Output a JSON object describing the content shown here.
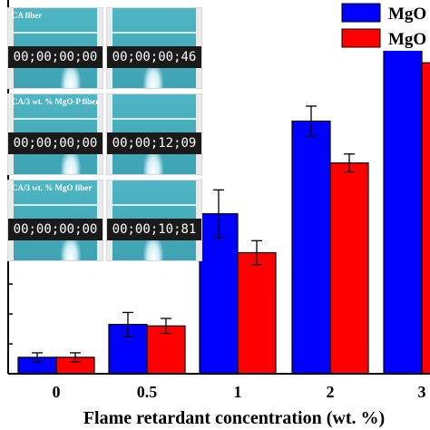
{
  "chart_data": {
    "type": "bar",
    "xlabel": "Flame retardant concentration (wt. %)",
    "ylabel": "",
    "categories": [
      "0",
      "0.5",
      "1",
      "2",
      "3"
    ],
    "ylim": [
      0,
      12.5
    ],
    "series": [
      {
        "name": "MgO",
        "color": "#0000ff",
        "values": [
          0.55,
          1.65,
          5.35,
          8.45,
          11.25
        ],
        "errors": [
          0.15,
          0.4,
          0.8,
          0.5,
          0.2
        ]
      },
      {
        "name": "MgO",
        "color": "#ff0000",
        "values": [
          0.55,
          1.6,
          4.05,
          7.05,
          10.4
        ],
        "errors": [
          0.15,
          0.25,
          0.4,
          0.3,
          0.6
        ]
      }
    ],
    "legend_position": "top-right"
  },
  "insets": [
    {
      "label": "CA fiber",
      "time": "00;00;00;00"
    },
    {
      "label": "",
      "time": "00;00;00;46"
    },
    {
      "label": "CA/3 wt. % MgO-P fiber",
      "time": "00;00;00;00"
    },
    {
      "label": "",
      "time": "00;00;12;09"
    },
    {
      "label": "CA/3 wt. % MgO fiber",
      "time": "00;00;00;00"
    },
    {
      "label": "",
      "time": "00;00;10;81"
    }
  ]
}
